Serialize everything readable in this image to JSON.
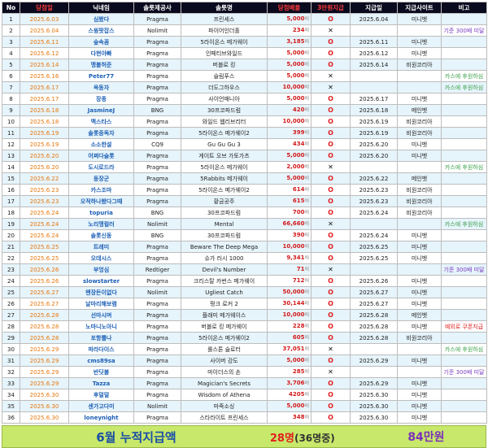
{
  "headers": [
    "No",
    "당첨일",
    "닉네임",
    "솔롯제공사",
    "솔롯명",
    "당첨배율",
    "3만원지급",
    "지급일",
    "지급사이트",
    "비고"
  ],
  "won_suffix": "배",
  "rows": [
    {
      "no": "1",
      "date": "2025.6.03",
      "nick": "심봤다",
      "prov": "Pragma",
      "game": "프린세스",
      "amt": "5,000",
      "mark": "O",
      "pdate": "2025.6.04",
      "site": "미니벳",
      "note": "",
      "note_color": ""
    },
    {
      "no": "2",
      "date": "2025.6.04",
      "nick": "스윙팟잡스",
      "prov": "Nolimit",
      "game": "파이어인더홀",
      "amt": "234",
      "mark": "X",
      "pdate": "",
      "site": "",
      "note": "기준 300배 미달",
      "note_color": "purple"
    },
    {
      "no": "3",
      "date": "2025.6.11",
      "nick": "숲속꼼",
      "prov": "Pragma",
      "game": "5라이온스 메가웨이",
      "amt": "3,185",
      "mark": "O",
      "pdate": "2025.6.11",
      "site": "미니벳",
      "note": "",
      "note_color": ""
    },
    {
      "no": "4",
      "date": "2025.6.12",
      "nick": "다현아빠",
      "prov": "Pragma",
      "game": "인페티브와일드",
      "amt": "5,000",
      "mark": "O",
      "pdate": "2025.6.12",
      "site": "미니벳",
      "note": "",
      "note_color": ""
    },
    {
      "no": "5",
      "date": "2025.6.14",
      "nick": "맹볼허준",
      "prov": "Pragma",
      "game": "버블로 킹",
      "amt": "5,000",
      "mark": "O",
      "pdate": "2025.6.14",
      "site": "비원코리아",
      "note": "",
      "note_color": ""
    },
    {
      "no": "6",
      "date": "2025.6.16",
      "nick": "Peter77",
      "prov": "Pragma",
      "game": "슬림푸스",
      "amt": "5,000",
      "mark": "X",
      "pdate": "",
      "site": "",
      "note": "카스에 후원하심",
      "note_color": ""
    },
    {
      "no": "7",
      "date": "2025.6.17",
      "nick": "옥동자",
      "prov": "Pragma",
      "game": "더도그하우스",
      "amt": "10,000",
      "mark": "X",
      "pdate": "",
      "site": "",
      "note": "카스에 후원하심",
      "note_color": ""
    },
    {
      "no": "8",
      "date": "2025.6.17",
      "nick": "장종",
      "prov": "Pragma",
      "game": "사이언매니아",
      "amt": "5,000",
      "mark": "O",
      "pdate": "2025.6.17",
      "site": "미니벳",
      "note": "",
      "note_color": ""
    },
    {
      "no": "9",
      "date": "2025.6.18",
      "nick": "JasmineJ",
      "prov": "BNG",
      "game": "30프코파드럼",
      "amt": "420",
      "mark": "O",
      "pdate": "2025.6.18",
      "site": "메인벳",
      "note": "",
      "note_color": ""
    },
    {
      "no": "10",
      "date": "2025.6.18",
      "nick": "맥스타스",
      "prov": "Pragma",
      "game": "와일드 웹리브리터",
      "amt": "10,000",
      "mark": "O",
      "pdate": "2025.6.19",
      "site": "비원코리아",
      "note": "",
      "note_color": ""
    },
    {
      "no": "11",
      "date": "2025.6.19",
      "nick": "솔롯중독자",
      "prov": "Pragma",
      "game": "5라이온스 메가웨이2",
      "amt": "399",
      "mark": "O",
      "pdate": "2025.6.19",
      "site": "비원코리아",
      "note": "",
      "note_color": ""
    },
    {
      "no": "12",
      "date": "2025.6.19",
      "nick": "소소한설",
      "prov": "CQ9",
      "game": "Gu Gu Gu 3",
      "amt": "434",
      "mark": "O",
      "pdate": "2025.6.20",
      "site": "미니벳",
      "note": "",
      "note_color": ""
    },
    {
      "no": "13",
      "date": "2025.6.20",
      "nick": "어쩌다슬롯",
      "prov": "Pragma",
      "game": "게이트 오브 가토가츠",
      "amt": "5,000",
      "mark": "O",
      "pdate": "2025.6.20",
      "site": "미니벳",
      "note": "",
      "note_color": ""
    },
    {
      "no": "14",
      "date": "2025.6.20",
      "nick": "도시로드라",
      "prov": "Pragma",
      "game": "5라이온스 메가웨이",
      "amt": "2,000",
      "mark": "X",
      "pdate": "",
      "site": "",
      "note": "카스에 후원하심",
      "note_color": ""
    },
    {
      "no": "15",
      "date": "2025.6.22",
      "nick": "동장군",
      "prov": "Pragma",
      "game": "5Rabbits 메가웨이",
      "amt": "5,000",
      "mark": "O",
      "pdate": "2025.6.22",
      "site": "메인벳",
      "note": "",
      "note_color": ""
    },
    {
      "no": "16",
      "date": "2025.6.23",
      "nick": "카스조마",
      "prov": "Pragma",
      "game": "5라이온스 메가웨이2",
      "amt": "614",
      "mark": "O",
      "pdate": "2025.6.23",
      "site": "비원코리아",
      "note": "",
      "note_color": ""
    },
    {
      "no": "17",
      "date": "2025.6.23",
      "nick": "오적하나봤다그때",
      "prov": "Pragma",
      "game": "황금공주",
      "amt": "615",
      "mark": "O",
      "pdate": "2025.6.23",
      "site": "비원코리아",
      "note": "",
      "note_color": ""
    },
    {
      "no": "18",
      "date": "2025.6.24",
      "nick": "topuria",
      "prov": "BNG",
      "game": "30프코파드럼",
      "amt": "700",
      "mark": "O",
      "pdate": "2025.6.24",
      "site": "비원코리아",
      "note": "",
      "note_color": ""
    },
    {
      "no": "19",
      "date": "2025.6.24",
      "nick": "노리맹컬러",
      "prov": "Nolimit",
      "game": "Mental",
      "amt": "66,660",
      "mark": "X",
      "pdate": "",
      "site": "",
      "note": "카스에 후원하심",
      "note_color": ""
    },
    {
      "no": "20",
      "date": "2025.6.24",
      "nick": "솔롯신동",
      "prov": "BNG",
      "game": "30프코파드럼",
      "amt": "390",
      "mark": "O",
      "pdate": "2025.6.24",
      "site": "미니벳",
      "note": "",
      "note_color": ""
    },
    {
      "no": "21",
      "date": "2025.6.25",
      "nick": "트레미",
      "prov": "Pragma",
      "game": "Beware The Deep Mega",
      "amt": "10,000",
      "mark": "O",
      "pdate": "2025.6.25",
      "site": "미니벳",
      "note": "",
      "note_color": ""
    },
    {
      "no": "22",
      "date": "2025.6.25",
      "nick": "오데시스",
      "prov": "Pragma",
      "game": "슈가 러시 1000",
      "amt": "9,341",
      "mark": "O",
      "pdate": "2025.6.25",
      "site": "미니벳",
      "note": "",
      "note_color": ""
    },
    {
      "no": "23",
      "date": "2025.6.26",
      "nick": "부엉심",
      "prov": "Redtiger",
      "game": "Devil's Number",
      "amt": "71",
      "mark": "X",
      "pdate": "",
      "site": "",
      "note": "기준 300배 미달",
      "note_color": "purple"
    },
    {
      "no": "24",
      "date": "2025.6.26",
      "nick": "slowstarter",
      "prov": "Pragma",
      "game": "크리스탈 카번스 메가웨이",
      "amt": "712",
      "mark": "O",
      "pdate": "2025.6.26",
      "site": "미니벳",
      "note": "",
      "note_color": ""
    },
    {
      "no": "25",
      "date": "2025.6.27",
      "nick": "왠장돈이없다",
      "prov": "Nolimit",
      "game": "Ugliest Catch",
      "amt": "50,000",
      "mark": "O",
      "pdate": "2025.6.27",
      "site": "미니벳",
      "note": "",
      "note_color": ""
    },
    {
      "no": "26",
      "date": "2025.6.27",
      "nick": "날마리해보렴",
      "prov": "Pragma",
      "game": "펑크 로커 2",
      "amt": "30,144",
      "mark": "O",
      "pdate": "2025.6.27",
      "site": "미니벳",
      "note": "",
      "note_color": ""
    },
    {
      "no": "27",
      "date": "2025.6.28",
      "nick": "선마시며",
      "prov": "Pragma",
      "game": "플래미 메가웨이스",
      "amt": "10,000",
      "mark": "O",
      "pdate": "2025.6.28",
      "site": "메인벳",
      "note": "",
      "note_color": ""
    },
    {
      "no": "28",
      "date": "2025.6.28",
      "nick": "노마니노아니",
      "prov": "Pragma",
      "game": "버블로 킹 메가웨이",
      "amt": "228",
      "mark": "O",
      "pdate": "2025.6.28",
      "site": "미니벳",
      "note": "예외로 쿠폰지급",
      "note_color": "red"
    },
    {
      "no": "29",
      "date": "2025.6.28",
      "nick": "포항뿔나",
      "prov": "Pragma",
      "game": "5라이온스 메가웨이2",
      "amt": "605",
      "mark": "O",
      "pdate": "2025.6.28",
      "site": "비원코리아",
      "note": "",
      "note_color": ""
    },
    {
      "no": "30",
      "date": "2025.6.29",
      "nick": "파라다이스",
      "prov": "Pragma",
      "game": "롤스톤 슬로터",
      "amt": "37,051",
      "mark": "X",
      "pdate": "",
      "site": "",
      "note": "카스에 후원하심",
      "note_color": ""
    },
    {
      "no": "31",
      "date": "2025.6.29",
      "nick": "cms89sa",
      "prov": "Pragma",
      "game": "사이버 강도",
      "amt": "5,000",
      "mark": "O",
      "pdate": "2025.6.29",
      "site": "미니벳",
      "note": "",
      "note_color": ""
    },
    {
      "no": "32",
      "date": "2025.6.29",
      "nick": "반딧불",
      "prov": "Pragma",
      "game": "마이더스의 손",
      "amt": "285",
      "mark": "X",
      "pdate": "",
      "site": "",
      "note": "기준 300배 미달",
      "note_color": "purple"
    },
    {
      "no": "33",
      "date": "2025.6.29",
      "nick": "Tazza",
      "prov": "Pragma",
      "game": "Magician's Secrets",
      "amt": "3,706",
      "mark": "O",
      "pdate": "2025.6.29",
      "site": "미니벳",
      "note": "",
      "note_color": ""
    },
    {
      "no": "34",
      "date": "2025.6.30",
      "nick": "후덜덜",
      "prov": "Pragma",
      "game": "Wisdom of Athena",
      "amt": "4205",
      "mark": "O",
      "pdate": "2025.6.30",
      "site": "미니벳",
      "note": "",
      "note_color": ""
    },
    {
      "no": "35",
      "date": "2025.6.30",
      "nick": "센가고다미",
      "prov": "Nolimit",
      "game": "마죽소싱",
      "amt": "5,000",
      "mark": "O",
      "pdate": "2025.6.30",
      "site": "미니벳",
      "note": "",
      "note_color": ""
    },
    {
      "no": "36",
      "date": "2025.6.30",
      "nick": "loneynight",
      "prov": "Pragma",
      "game": "스타라이트 프린세스",
      "amt": "348",
      "mark": "O",
      "pdate": "2025.6.30",
      "site": "미니벳",
      "note": "",
      "note_color": ""
    }
  ],
  "footer": {
    "title": "6월 누적지급액",
    "count": "28명",
    "count_paren": "(36명중)",
    "total": "84만원"
  },
  "colors": {
    "header_bg": "#0a0a1e",
    "row_alt": "#e6f4fb",
    "footer_bg": "#c7e86a",
    "accent_red": "#e02020",
    "accent_blue": "#1a4fa5",
    "accent_purple": "#7a2fb8",
    "note_green": "#3aa048"
  }
}
